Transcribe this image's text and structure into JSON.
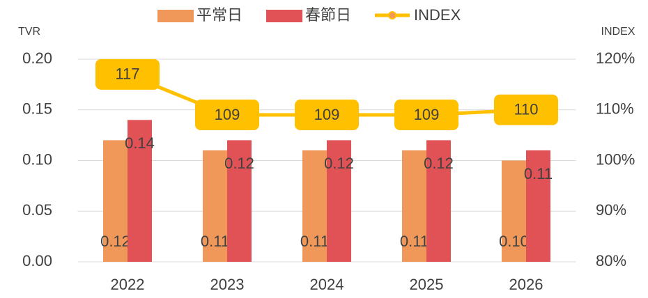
{
  "chart_data": {
    "type": "bar",
    "categories": [
      "2022",
      "2023",
      "2024",
      "2025",
      "2026"
    ],
    "y_label": "TVR",
    "y2_label": "INDEX",
    "ylim": [
      0,
      0.2
    ],
    "yticks": [
      {
        "value": 0,
        "label": "0.00"
      },
      {
        "value": 0.05,
        "label": "0.05"
      },
      {
        "value": 0.1,
        "label": "0.10"
      },
      {
        "value": 0.15,
        "label": "0.15"
      },
      {
        "value": 0.2,
        "label": "0.20"
      }
    ],
    "y2lim": [
      80,
      120
    ],
    "y2ticks": [
      {
        "value": 80,
        "label": "80%"
      },
      {
        "value": 90,
        "label": "90%"
      },
      {
        "value": 100,
        "label": "100%"
      },
      {
        "value": 110,
        "label": "110%"
      },
      {
        "value": 120,
        "label": "120%"
      }
    ],
    "grid": true,
    "series": [
      {
        "name": "平常日",
        "color": "#F0975A",
        "values": [
          0.12,
          0.11,
          0.11,
          0.11,
          0.1
        ],
        "value_labels": [
          "0.12",
          "0.11",
          "0.11",
          "0.11",
          "0.10"
        ]
      },
      {
        "name": "春節日",
        "color": "#E05256",
        "values": [
          0.14,
          0.12,
          0.12,
          0.12,
          0.11
        ],
        "value_labels": [
          "0.14",
          "0.12",
          "0.12",
          "0.12",
          "0.11"
        ]
      },
      {
        "name": "INDEX",
        "color": "#FFC000",
        "type": "line",
        "axis": "y2",
        "values": [
          117,
          109,
          109,
          109,
          110
        ]
      }
    ]
  }
}
